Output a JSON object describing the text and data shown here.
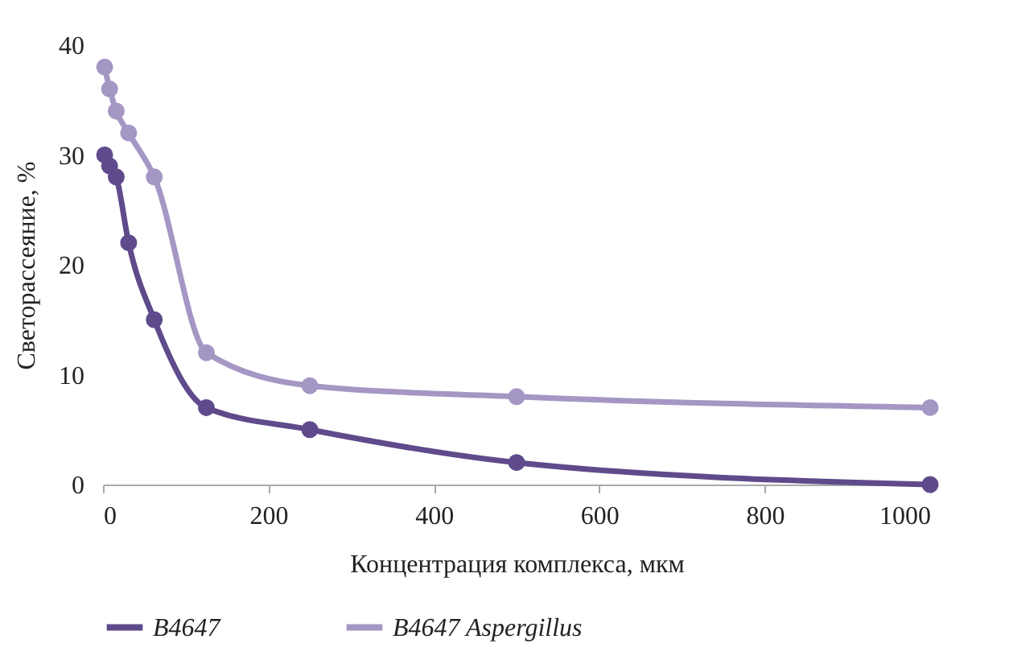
{
  "chart_data": {
    "type": "line",
    "xlabel": "Концентрация комплекса, мкм",
    "ylabel": "Светорассеяние, %",
    "x": [
      2,
      8,
      16,
      31,
      62,
      125,
      250,
      500,
      1000
    ],
    "series": [
      {
        "name": "B4647",
        "color": "#5f4b8b",
        "values": [
          30,
          29,
          28,
          22,
          15,
          7,
          5,
          2,
          0
        ]
      },
      {
        "name": "B4647 Aspergillus",
        "color": "#a597c4",
        "values": [
          38,
          36,
          34,
          32,
          28,
          12,
          9,
          8,
          7
        ]
      }
    ],
    "xlim": [
      0,
      1000
    ],
    "xticks": [
      0,
      200,
      400,
      600,
      800,
      1000
    ],
    "ylim": [
      0,
      40
    ],
    "yticks": [
      0,
      10,
      20,
      30,
      40
    ],
    "grid": false,
    "legend": "bottom",
    "marker": "circle",
    "line_style": "solid"
  }
}
